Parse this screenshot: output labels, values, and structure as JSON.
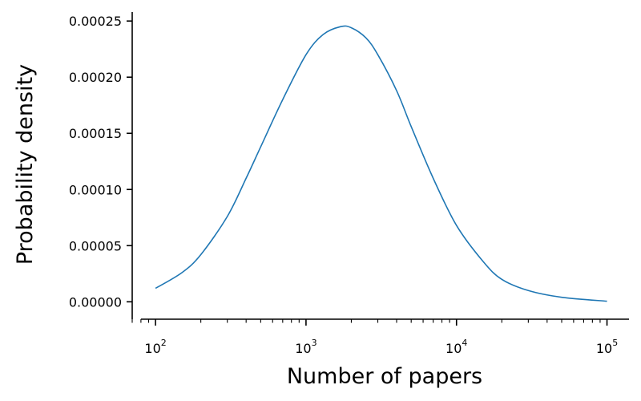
{
  "chart_data": {
    "type": "line",
    "title": "",
    "xlabel": "Number of papers",
    "ylabel": "Probability density",
    "x_scale": "log",
    "xlim": [
      70,
      140000
    ],
    "ylim": [
      -1.55e-05,
      0.000258
    ],
    "x_ticks": [
      100,
      1000,
      10000,
      100000
    ],
    "x_tick_labels": [
      {
        "base": "10",
        "exp": "2"
      },
      {
        "base": "10",
        "exp": "3"
      },
      {
        "base": "10",
        "exp": "4"
      },
      {
        "base": "10",
        "exp": "5"
      }
    ],
    "y_ticks": [
      0,
      5e-05,
      0.0001,
      0.00015,
      0.0002,
      0.00025
    ],
    "y_tick_labels": [
      "0.00000",
      "0.00005",
      "0.00010",
      "0.00015",
      "0.00020",
      "0.00025"
    ],
    "grid": false,
    "legend": "none",
    "series": [
      {
        "color": "#1f77b4",
        "x": [
          100,
          150,
          200,
          300,
          400,
          500,
          700,
          1000,
          1300,
          1700,
          2000,
          2500,
          3000,
          4000,
          5000,
          7000,
          10000,
          15000,
          20000,
          30000,
          50000,
          100000
        ],
        "values": [
          1.2e-05,
          2.6e-05,
          4.2e-05,
          7.6e-05,
          0.00011,
          0.000138,
          0.00018,
          0.00022,
          0.000238,
          0.000245,
          0.000244,
          0.000235,
          0.00022,
          0.000188,
          0.000156,
          0.00011,
          6.8e-05,
          3.6e-05,
          2e-05,
          1e-05,
          4e-06,
          5e-07
        ]
      }
    ]
  }
}
